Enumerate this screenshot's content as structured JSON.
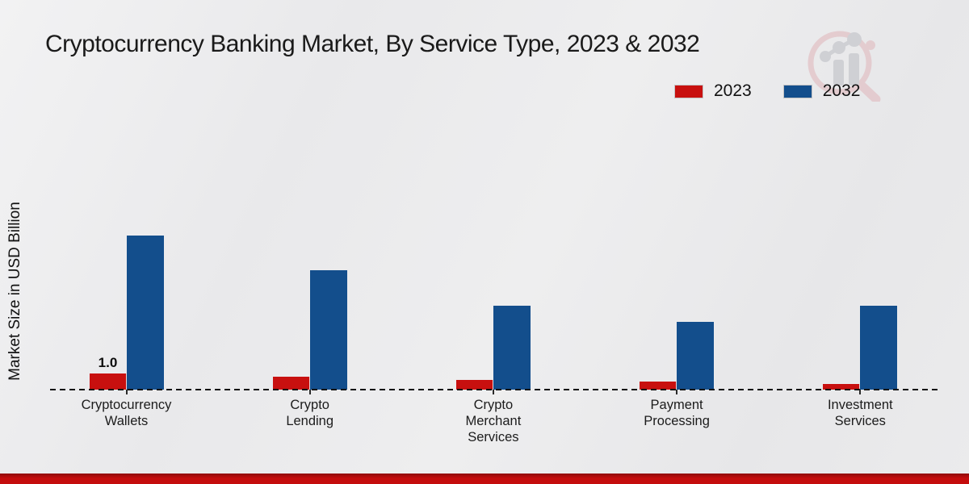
{
  "page": {
    "title": "Cryptocurrency Banking Market, By Service Type, 2023 & 2032",
    "y_axis_label": "Market Size in USD Billion"
  },
  "legend": {
    "items": [
      {
        "label": "2023",
        "color": "#c8100f"
      },
      {
        "label": "2032",
        "color": "#134e8c"
      }
    ]
  },
  "chart_data": {
    "type": "bar",
    "title": "Cryptocurrency Banking Market, By Service Type, 2023 & 2032",
    "xlabel": "",
    "ylabel": "Market Size in USD Billion",
    "categories": [
      "Cryptocurrency Wallets",
      "Crypto Lending",
      "Crypto Merchant Services",
      "Payment Processing",
      "Investment Services"
    ],
    "category_lines": [
      [
        "Cryptocurrency",
        "Wallets"
      ],
      [
        "Crypto",
        "Lending"
      ],
      [
        "Crypto",
        "Merchant",
        "Services"
      ],
      [
        "Payment",
        "Processing"
      ],
      [
        "Investment",
        "Services"
      ]
    ],
    "series": [
      {
        "name": "2023",
        "color": "#c8100f",
        "values": [
          1.0,
          0.8,
          0.6,
          0.5,
          0.35
        ]
      },
      {
        "name": "2032",
        "color": "#134e8c",
        "values": [
          9.3,
          7.2,
          5.1,
          4.1,
          5.1
        ]
      }
    ],
    "annotations": [
      {
        "series": "2023",
        "category": "Cryptocurrency Wallets",
        "text": "1.0"
      }
    ],
    "ylim": [
      0,
      10
    ],
    "grid": false,
    "legend_position": "top-right",
    "baseline_style": "dashed",
    "colors": {
      "accent_red": "#c8100f",
      "accent_blue": "#134e8c",
      "footer_band": "#c40d0d"
    }
  }
}
